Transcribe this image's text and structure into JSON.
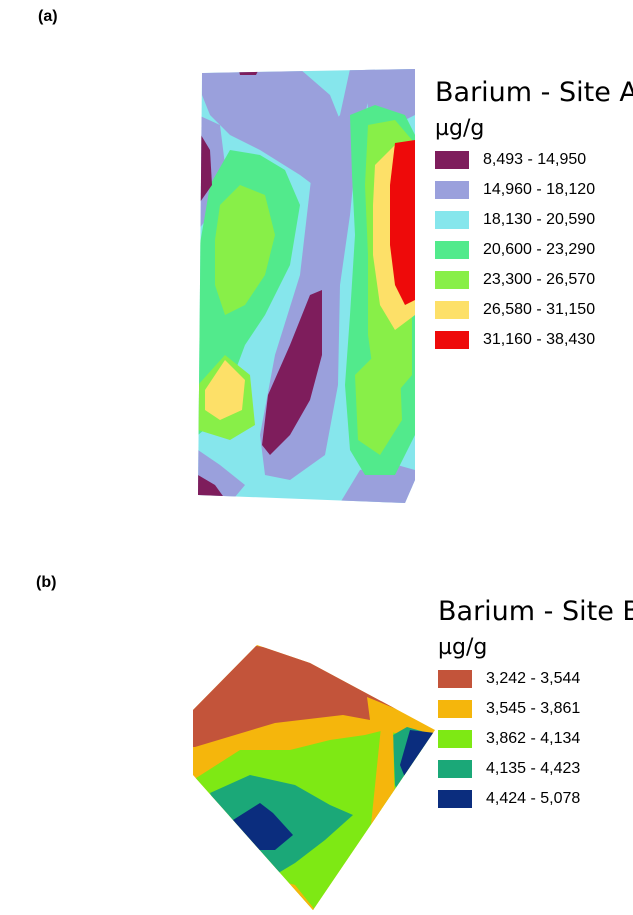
{
  "panels": [
    {
      "label": "(a)",
      "legend": {
        "title": "Barium - Site A",
        "unit": "µg/g",
        "classes": [
          {
            "range": "8,493 - 14,950",
            "color": "#7e1d5c"
          },
          {
            "range": "14,960 - 18,120",
            "color": "#9aa0dc"
          },
          {
            "range": "18,130 - 20,590",
            "color": "#86e6ec"
          },
          {
            "range": "20,600 - 23,290",
            "color": "#52ea8c"
          },
          {
            "range": "23,300 - 26,570",
            "color": "#88ef48"
          },
          {
            "range": "26,580 - 31,150",
            "color": "#fde068"
          },
          {
            "range": "31,160 - 38,430",
            "color": "#ee0a0a"
          }
        ]
      }
    },
    {
      "label": "(b)",
      "legend": {
        "title": "Barium - Site B",
        "unit": "µg/g",
        "classes": [
          {
            "range": "3,242 - 3,544",
            "color": "#c3543a"
          },
          {
            "range": "3,545 - 3,861",
            "color": "#f5b60c"
          },
          {
            "range": "3,862 - 4,134",
            "color": "#7ee914"
          },
          {
            "range": "4,135 - 4,423",
            "color": "#1ba878"
          },
          {
            "range": "4,424 - 5,078",
            "color": "#0b2d7e"
          }
        ]
      }
    }
  ]
}
